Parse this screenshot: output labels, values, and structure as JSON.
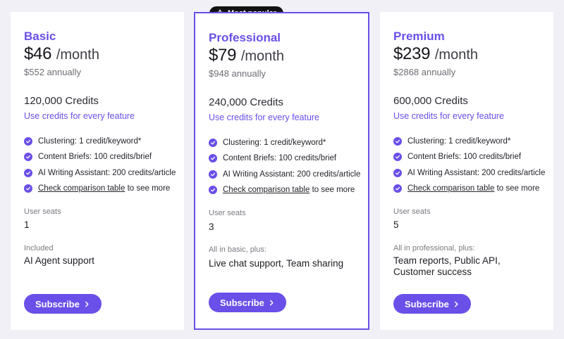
{
  "badge": {
    "label": "Most popular",
    "icon": "star-icon"
  },
  "accent_color": "#6a4fe8",
  "plans": [
    {
      "name": "Basic",
      "price": "$46",
      "period": "/month",
      "annual": "$552 annually",
      "credits": "120,000 Credits",
      "credits_note": "Use credits for every feature",
      "features": [
        "Clustering: 1 credit/keyword*",
        "Content Briefs: 100 credits/brief",
        "AI Writing Assistant: 200 credits/article"
      ],
      "compare_link": "Check comparison table",
      "compare_suffix": " to see more",
      "seats_label": "User seats",
      "seats": "1",
      "included_label": "Included",
      "included": "AI Agent support",
      "button": "Subscribe"
    },
    {
      "name": "Professional",
      "price": "$79",
      "period": "/month",
      "annual": "$948 annually",
      "credits": "240,000 Credits",
      "credits_note": "Use credits for every feature",
      "features": [
        "Clustering: 1 credit/keyword*",
        "Content Briefs: 100 credits/brief",
        "AI Writing Assistant: 200 credits/article"
      ],
      "compare_link": "Check comparison table",
      "compare_suffix": " to see more",
      "seats_label": "User seats",
      "seats": "3",
      "included_label": "All in basic, plus:",
      "included": "Live chat support, Team sharing",
      "button": "Subscribe"
    },
    {
      "name": "Premium",
      "price": "$239",
      "period": "/month",
      "annual": "$2868 annually",
      "credits": "600,000 Credits",
      "credits_note": "Use credits for every feature",
      "features": [
        "Clustering: 1 credit/keyword*",
        "Content Briefs: 100 credits/brief",
        "AI Writing Assistant: 200 credits/article"
      ],
      "compare_link": "Check comparison table",
      "compare_suffix": " to see more",
      "seats_label": "User seats",
      "seats": "5",
      "included_label": "All in professional, plus:",
      "included": "Team reports, Public API, Customer success",
      "button": "Subscribe"
    }
  ]
}
